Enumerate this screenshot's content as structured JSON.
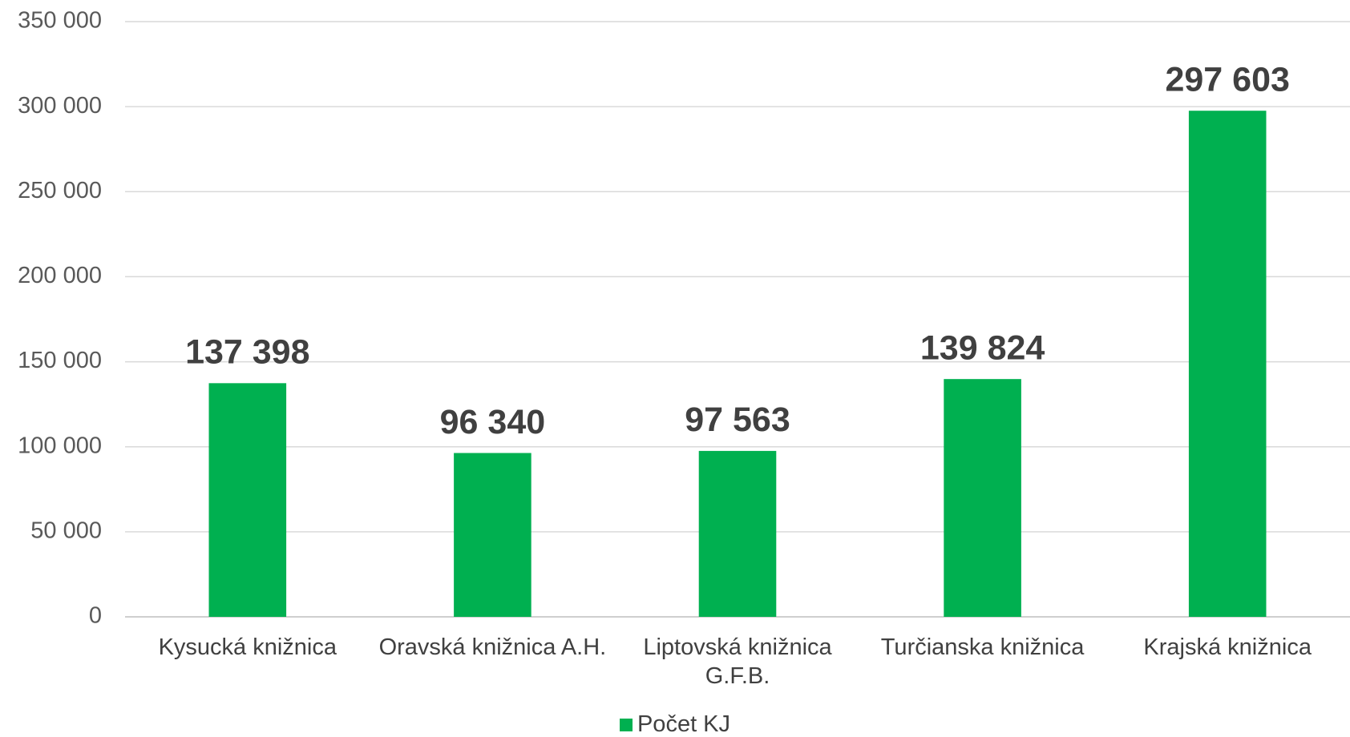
{
  "chart_data": {
    "type": "bar",
    "categories": [
      "Kysucká knižnica",
      "Oravská knižnica A.H.",
      "Liptovská knižnica G.F.B.",
      "Turčianska knižnica",
      "Krajská knižnica"
    ],
    "series": [
      {
        "name": "Počet KJ",
        "color": "#00b050",
        "values": [
          137398,
          96340,
          97563,
          139824,
          297603
        ],
        "value_labels": [
          "137 398",
          "96 340",
          "97 563",
          "139 824",
          "297 603"
        ]
      }
    ],
    "ylim": [
      0,
      350000
    ],
    "yticks": [
      {
        "value": 0,
        "label": "0"
      },
      {
        "value": 50000,
        "label": "50 000"
      },
      {
        "value": 100000,
        "label": "100 000"
      },
      {
        "value": 150000,
        "label": "150 000"
      },
      {
        "value": 200000,
        "label": "200 000"
      },
      {
        "value": 250000,
        "label": "250 000"
      },
      {
        "value": 300000,
        "label": "300 000"
      },
      {
        "value": 350000,
        "label": "350 000"
      }
    ],
    "grid": true,
    "legend": "bottom"
  }
}
